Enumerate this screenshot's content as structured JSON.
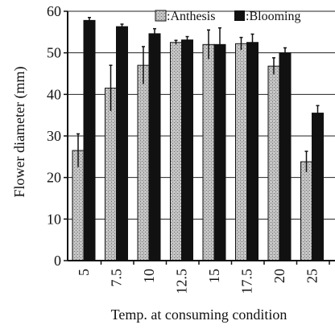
{
  "chart_data": {
    "type": "bar",
    "categories": [
      "5",
      "7.5",
      "10",
      "12.5",
      "15",
      "17.5",
      "20",
      "25"
    ],
    "series": [
      {
        "name": ":Anthesis",
        "values": [
          26.5,
          41.5,
          47,
          52.5,
          52,
          52.2,
          46.8,
          23.8
        ],
        "errors": [
          4,
          5.5,
          4.5,
          0.5,
          3.5,
          1.5,
          2,
          2.5
        ],
        "pattern": "stippled-gray"
      },
      {
        "name": ":Blooming",
        "values": [
          57.8,
          56.3,
          54.6,
          53.1,
          52,
          52.5,
          50,
          35.5
        ],
        "errors": [
          0.7,
          0.6,
          1.2,
          0.8,
          4,
          2,
          1.2,
          1.8
        ],
        "color": "#111111"
      }
    ],
    "xlabel": "Temp. at consuming condition",
    "ylabel": "Flower diameter (mm)",
    "ylim": [
      0,
      60
    ],
    "yticks": [
      "0",
      "10",
      "20",
      "30",
      "40",
      "50",
      "60"
    ],
    "grid": "horizontal",
    "legend_position": "top-right"
  }
}
